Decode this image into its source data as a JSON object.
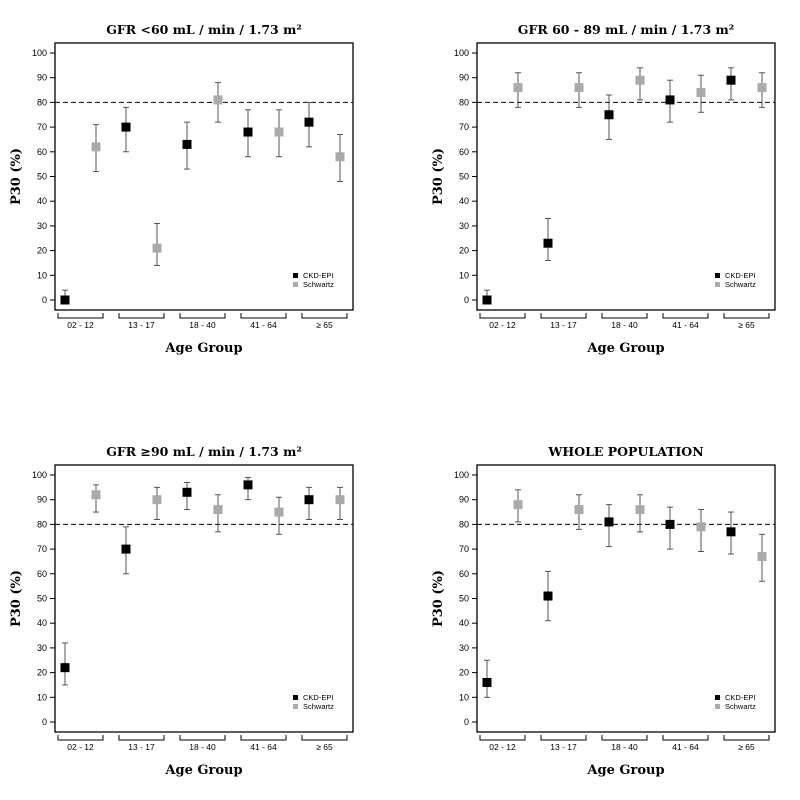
{
  "chart_data": [
    {
      "type": "scatter",
      "title": "GFR <60 mL / min / 1.73 m²",
      "xlabel": "Age Group",
      "ylabel": "P30 (%)",
      "categories": [
        "02 - 12",
        "13 - 17",
        "18 - 40",
        "41 - 64",
        "≥ 65"
      ],
      "yticks": [
        "0",
        "10",
        "20",
        "30",
        "40",
        "50",
        "60",
        "70",
        "80",
        "90",
        "100"
      ],
      "ylim": [
        0,
        100
      ],
      "reference_line": 80,
      "legend": {
        "position": "bottom-right"
      },
      "series": [
        {
          "name": "CKD-EPI",
          "color": "#000000",
          "values": [
            0,
            70,
            63,
            68,
            72
          ],
          "lower": [
            0,
            60,
            53,
            58,
            62
          ],
          "upper": [
            4,
            78,
            72,
            77,
            80
          ]
        },
        {
          "name": "Schwartz",
          "color": "#aaaaaa",
          "values": [
            62,
            21,
            81,
            68,
            58
          ],
          "lower": [
            52,
            14,
            72,
            58,
            48
          ],
          "upper": [
            71,
            31,
            88,
            77,
            67
          ]
        }
      ]
    },
    {
      "type": "scatter",
      "title": "GFR 60 - 89 mL / min / 1.73 m²",
      "xlabel": "Age Group",
      "ylabel": "P30 (%)",
      "categories": [
        "02 - 12",
        "13 - 17",
        "18 - 40",
        "41 - 64",
        "≥ 65"
      ],
      "yticks": [
        "0",
        "10",
        "20",
        "30",
        "40",
        "50",
        "60",
        "70",
        "80",
        "90",
        "100"
      ],
      "ylim": [
        0,
        100
      ],
      "reference_line": 80,
      "legend": {
        "position": "bottom-right"
      },
      "series": [
        {
          "name": "CKD-EPI",
          "color": "#000000",
          "values": [
            0,
            23,
            75,
            81,
            89
          ],
          "lower": [
            0,
            16,
            65,
            72,
            81
          ],
          "upper": [
            4,
            33,
            83,
            89,
            94
          ]
        },
        {
          "name": "Schwartz",
          "color": "#aaaaaa",
          "values": [
            86,
            86,
            89,
            84,
            86
          ],
          "lower": [
            78,
            78,
            81,
            76,
            78
          ],
          "upper": [
            92,
            92,
            94,
            91,
            92
          ]
        }
      ]
    },
    {
      "type": "scatter",
      "title": "GFR ≥90 mL / min / 1.73 m²",
      "xlabel": "Age Group",
      "ylabel": "P30 (%)",
      "categories": [
        "02 - 12",
        "13 - 17",
        "18 - 40",
        "41 - 64",
        "≥ 65"
      ],
      "yticks": [
        "0",
        "10",
        "20",
        "30",
        "40",
        "50",
        "60",
        "70",
        "80",
        "90",
        "100"
      ],
      "ylim": [
        0,
        100
      ],
      "reference_line": 80,
      "legend": {
        "position": "bottom-right"
      },
      "series": [
        {
          "name": "CKD-EPI",
          "color": "#000000",
          "values": [
            22,
            70,
            93,
            96,
            90
          ],
          "lower": [
            15,
            60,
            86,
            90,
            82
          ],
          "upper": [
            32,
            79,
            97,
            99,
            95
          ]
        },
        {
          "name": "Schwartz",
          "color": "#aaaaaa",
          "values": [
            92,
            90,
            86,
            85,
            90
          ],
          "lower": [
            85,
            82,
            77,
            76,
            82
          ],
          "upper": [
            96,
            95,
            92,
            91,
            95
          ]
        }
      ]
    },
    {
      "type": "scatter",
      "title": "WHOLE POPULATION",
      "xlabel": "Age Group",
      "ylabel": "P30 (%)",
      "categories": [
        "02 - 12",
        "13 - 17",
        "18 - 40",
        "41 - 64",
        "≥ 65"
      ],
      "yticks": [
        "0",
        "10",
        "20",
        "30",
        "40",
        "50",
        "60",
        "70",
        "80",
        "90",
        "100"
      ],
      "ylim": [
        0,
        100
      ],
      "reference_line": 80,
      "legend": {
        "position": "bottom-right"
      },
      "series": [
        {
          "name": "CKD-EPI",
          "color": "#000000",
          "values": [
            16,
            51,
            81,
            80,
            77
          ],
          "lower": [
            10,
            41,
            71,
            70,
            68
          ],
          "upper": [
            25,
            61,
            88,
            87,
            85
          ]
        },
        {
          "name": "Schwartz",
          "color": "#aaaaaa",
          "values": [
            88,
            86,
            86,
            79,
            67
          ],
          "lower": [
            81,
            78,
            77,
            69,
            57
          ],
          "upper": [
            94,
            92,
            92,
            86,
            76
          ]
        }
      ]
    }
  ]
}
